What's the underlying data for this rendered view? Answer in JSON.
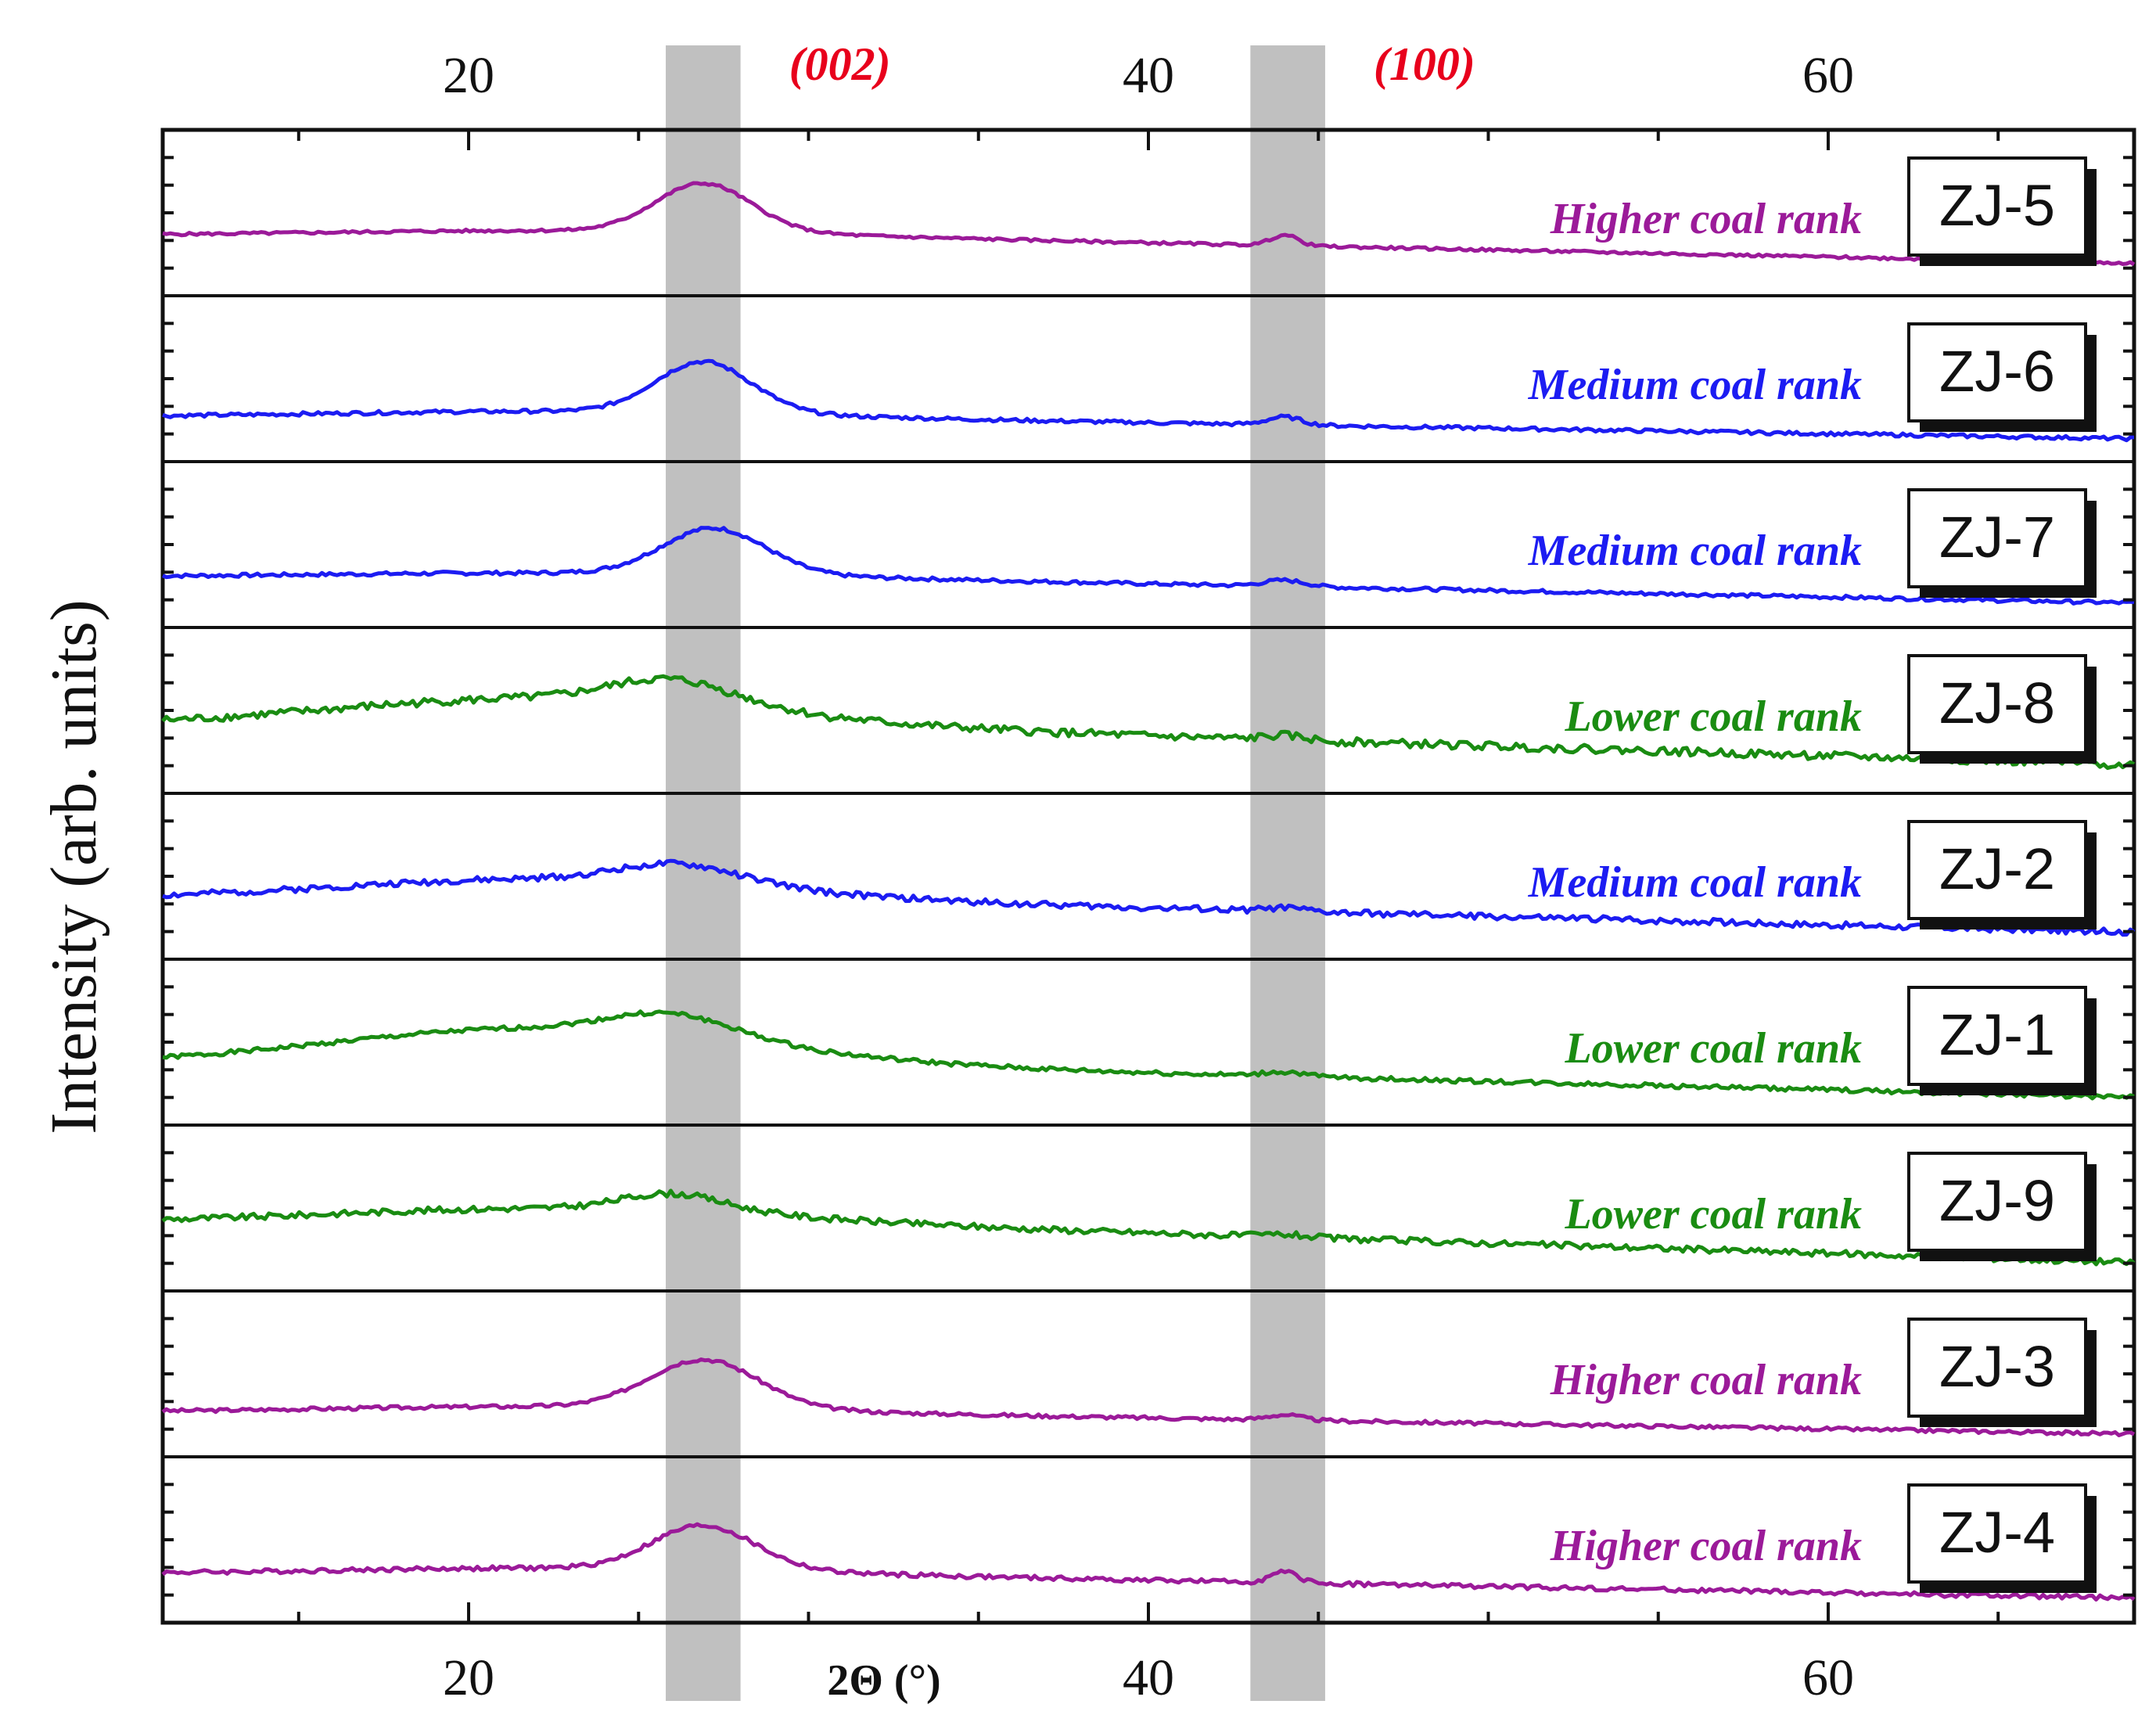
{
  "chart_data": {
    "type": "line",
    "title": "",
    "xlabel": "2Θ (°)",
    "ylabel": "Intensity (arb. units)",
    "xlim": [
      11,
      69
    ],
    "xticks": [
      20,
      40,
      60
    ],
    "xtick_labels": [
      "20",
      "40",
      "60"
    ],
    "grid": false,
    "highlight_bands": [
      {
        "label": "(002)",
        "range": [
          25.8,
          28.0
        ],
        "color": "#c0c0c0",
        "label_color": "#e8001c"
      },
      {
        "label": "(100)",
        "range": [
          43.0,
          45.2
        ],
        "color": "#c0c0c0",
        "label_color": "#e8001c"
      }
    ],
    "series": [
      {
        "name": "ZJ-5",
        "rank": "Higher coal rank",
        "color": "#9b1a99",
        "baseline": 0.62,
        "peak002": {
          "center": 26.9,
          "height": 0.55,
          "width": 1.4
        },
        "peak100": {
          "center": 44.0,
          "height": 0.12,
          "width": 0.4
        },
        "shoulder": 0.05,
        "slope": 0.32,
        "noise": 0.03,
        "seed": 5
      },
      {
        "name": "ZJ-6",
        "rank": "Medium coal rank",
        "color": "#1c1cf2",
        "baseline": 0.38,
        "peak002": {
          "center": 26.9,
          "height": 0.58,
          "width": 1.4
        },
        "peak100": {
          "center": 44.0,
          "height": 0.09,
          "width": 0.5
        },
        "shoulder": 0.06,
        "slope": 0.25,
        "noise": 0.04,
        "seed": 6
      },
      {
        "name": "ZJ-7",
        "rank": "Medium coal rank",
        "color": "#1c1cf2",
        "baseline": 0.42,
        "peak002": {
          "center": 27.2,
          "height": 0.52,
          "width": 1.5
        },
        "peak100": {
          "center": 44.0,
          "height": 0.07,
          "width": 0.6
        },
        "shoulder": 0.04,
        "slope": 0.3,
        "noise": 0.04,
        "seed": 7
      },
      {
        "name": "ZJ-8",
        "rank": "Lower coal rank",
        "color": "#1a8c12",
        "baseline": 0.52,
        "peak002": {
          "center": 26.0,
          "height": 0.28,
          "width": 1.8
        },
        "peak100": {
          "center": 44.0,
          "height": 0.05,
          "width": 0.6
        },
        "shoulder": 0.3,
        "slope": 0.45,
        "noise": 0.09,
        "seed": 8
      },
      {
        "name": "ZJ-2",
        "rank": "Medium coal rank",
        "color": "#1c1cf2",
        "baseline": 0.48,
        "peak002": {
          "center": 26.2,
          "height": 0.22,
          "width": 1.8
        },
        "peak100": {
          "center": 44.0,
          "height": 0.04,
          "width": 0.6
        },
        "shoulder": 0.22,
        "slope": 0.38,
        "noise": 0.07,
        "seed": 2
      },
      {
        "name": "ZJ-1",
        "rank": "Lower coal rank",
        "color": "#1a8c12",
        "baseline": 0.5,
        "peak002": {
          "center": 26.0,
          "height": 0.25,
          "width": 1.8
        },
        "peak100": {
          "center": 44.0,
          "height": 0.05,
          "width": 0.6
        },
        "shoulder": 0.4,
        "slope": 0.38,
        "noise": 0.05,
        "seed": 1
      },
      {
        "name": "ZJ-9",
        "rank": "Lower coal rank",
        "color": "#1a8c12",
        "baseline": 0.52,
        "peak002": {
          "center": 26.0,
          "height": 0.2,
          "width": 1.5
        },
        "peak100": {
          "center": 44.0,
          "height": 0.03,
          "width": 0.6
        },
        "shoulder": 0.15,
        "slope": 0.46,
        "noise": 0.07,
        "seed": 9
      },
      {
        "name": "ZJ-3",
        "rank": "Higher coal rank",
        "color": "#9b1a99",
        "baseline": 0.38,
        "peak002": {
          "center": 26.9,
          "height": 0.55,
          "width": 1.6
        },
        "peak100": {
          "center": 44.0,
          "height": 0.06,
          "width": 0.5
        },
        "shoulder": 0.06,
        "slope": 0.25,
        "noise": 0.04,
        "seed": 3
      },
      {
        "name": "ZJ-4",
        "rank": "Higher coal rank",
        "color": "#9b1a99",
        "baseline": 0.42,
        "peak002": {
          "center": 26.9,
          "height": 0.5,
          "width": 1.5
        },
        "peak100": {
          "center": 44.0,
          "height": 0.12,
          "width": 0.4
        },
        "shoulder": 0.06,
        "slope": 0.28,
        "noise": 0.05,
        "seed": 4
      }
    ]
  }
}
